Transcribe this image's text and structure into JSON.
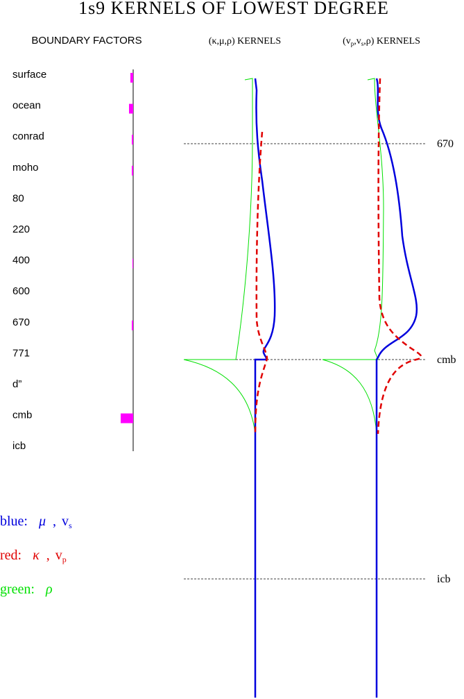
{
  "title": "1s9 KERNELS OF LOWEST DEGREE",
  "boundary_factors": {
    "title": "BOUNDARY FACTORS",
    "items": [
      {
        "label": "surface",
        "value": 4
      },
      {
        "label": "ocean",
        "value": 6
      },
      {
        "label": "conrad",
        "value": 2
      },
      {
        "label": "moho",
        "value": 2
      },
      {
        "label": "80",
        "value": 0
      },
      {
        "label": "220",
        "value": 0
      },
      {
        "label": "400",
        "value": 1
      },
      {
        "label": "600",
        "value": 0
      },
      {
        "label": "670",
        "value": 2
      },
      {
        "label": "771",
        "value": 0
      },
      {
        "label": "d”",
        "value": 0
      },
      {
        "label": "cmb",
        "value": 18
      },
      {
        "label": "icb",
        "value": 0
      }
    ]
  },
  "columns": [
    {
      "title": "(κ,μ,ρ) KERNELS"
    },
    {
      "title_parts": [
        "(v",
        "p",
        ",v",
        "s",
        ",ρ) KERNELS"
      ]
    }
  ],
  "depth_labels": [
    "670",
    "cmb",
    "icb"
  ],
  "legend": [
    {
      "color_word": "blue:",
      "symbol": "μ",
      "sep": ",",
      "v": "v",
      "sub": "s"
    },
    {
      "color_word": "red:",
      "symbol": "κ",
      "sep": ",",
      "v": "v",
      "sub": "p"
    },
    {
      "color_word": "green:",
      "symbol": "ρ"
    }
  ]
}
